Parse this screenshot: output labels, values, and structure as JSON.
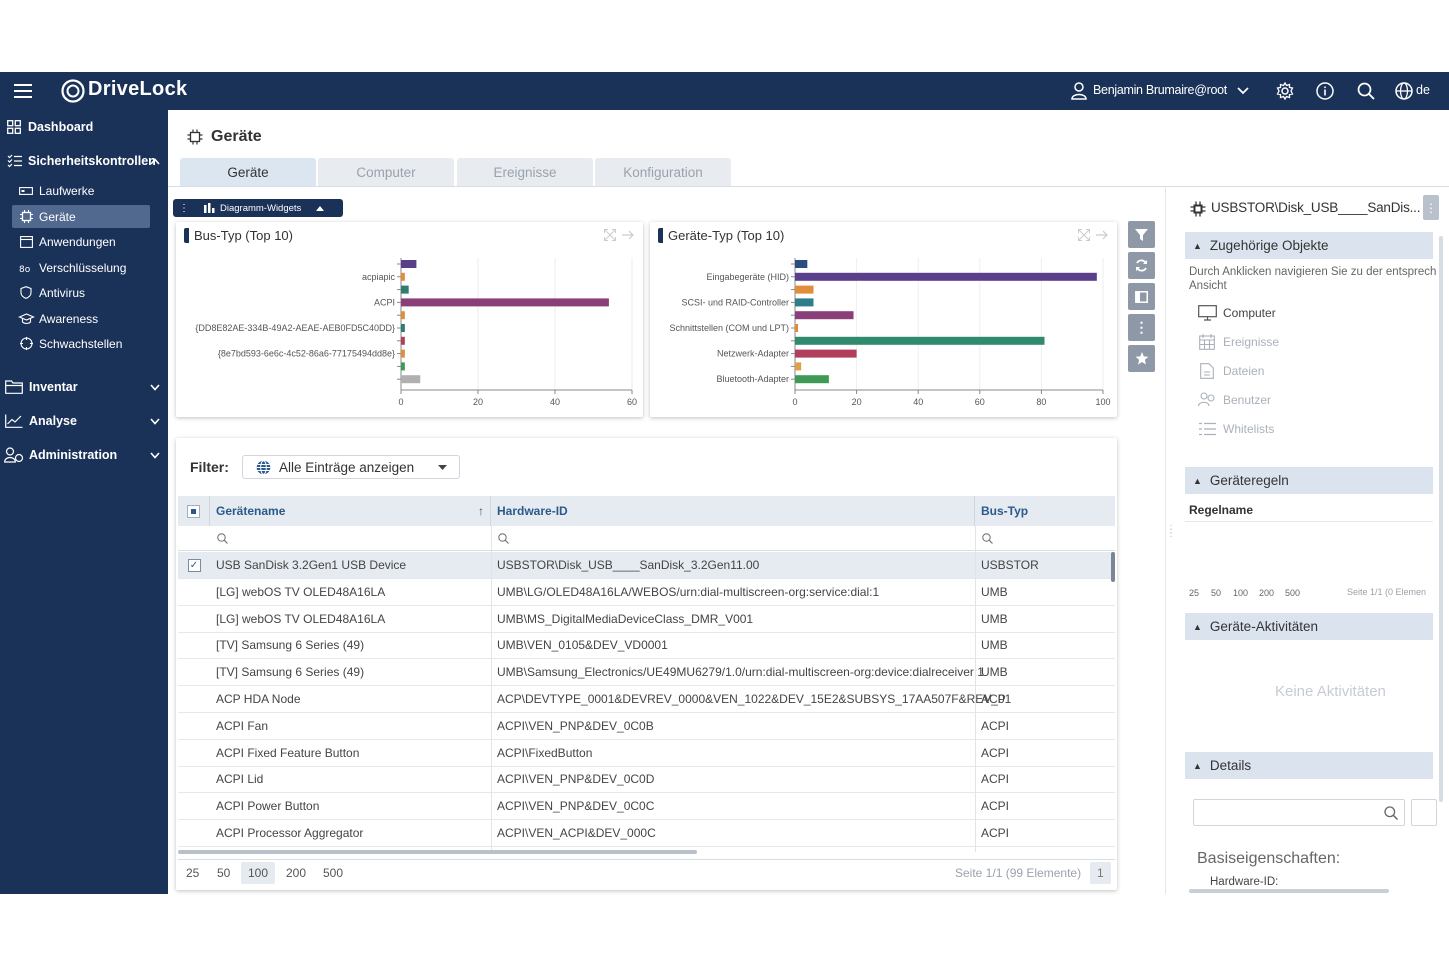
{
  "brand": {
    "name": "DriveLock"
  },
  "header": {
    "user": "Benjamin Brumaire@root",
    "lang": "de"
  },
  "sidebar": {
    "dashboard": "Dashboard",
    "security": "Sicherheitskontrollen",
    "items": [
      {
        "label": "Laufwerke",
        "icon": "drive-icon"
      },
      {
        "label": "Geräte",
        "icon": "chip-icon"
      },
      {
        "label": "Anwendungen",
        "icon": "window-icon"
      },
      {
        "label": "Verschlüsselung",
        "icon": "key-icon"
      },
      {
        "label": "Antivirus",
        "icon": "shield-icon"
      },
      {
        "label": "Awareness",
        "icon": "graduation-icon"
      },
      {
        "label": "Schwachstellen",
        "icon": "target-icon"
      }
    ],
    "inventory": "Inventar",
    "analysis": "Analyse",
    "administration": "Administration"
  },
  "page": {
    "title": "Geräte",
    "tabs": [
      "Geräte",
      "Computer",
      "Ereignisse",
      "Konfiguration"
    ],
    "widgets_label": "Diagramm-Widgets"
  },
  "chart_data": [
    {
      "type": "bar",
      "title": "Bus-Typ (Top 10)",
      "orientation": "horizontal",
      "categories": [
        "",
        "acpiapic",
        "",
        "ACPI",
        "",
        "{DD8E82AE-334B-49A2-AEAE-AEB0FD5C40DD}",
        "",
        "{8e7bd593-6e6c-4c52-86a6-77175494dd8e}",
        "",
        ""
      ],
      "values": [
        4,
        1,
        2,
        54,
        1,
        1,
        1,
        1,
        1,
        5
      ],
      "colors": [
        "#5a3f8a",
        "#e08e3c",
        "#2f7d70",
        "#8a3f79",
        "#e08e3c",
        "#2f7d70",
        "#b13f5b",
        "#e08e3c",
        "#3f9a55",
        "#b0b0b0"
      ],
      "xlim": [
        0,
        60
      ],
      "xticks": [
        0,
        20,
        40,
        60
      ]
    },
    {
      "type": "bar",
      "title": "Geräte-Typ (Top 10)",
      "orientation": "horizontal",
      "categories": [
        "",
        "Eingabegeräte (HID)",
        "",
        "SCSI- und RAID-Controller",
        "",
        "Schnittstellen (COM und LPT)",
        "",
        "Netzwerk-Adapter",
        "",
        "Bluetooth-Adapter"
      ],
      "values": [
        4,
        98,
        6,
        6,
        19,
        1,
        81,
        20,
        2,
        11
      ],
      "colors": [
        "#2b4e7e",
        "#5a3f8a",
        "#e08e3c",
        "#2f7d8a",
        "#8a3f79",
        "#e08e3c",
        "#2f8a6e",
        "#b13f5b",
        "#e0a04a",
        "#3f9a55"
      ],
      "xlim": [
        0,
        100
      ],
      "xticks": [
        0,
        20,
        40,
        60,
        80,
        100
      ]
    }
  ],
  "filter": {
    "label": "Filter:",
    "value": "Alle Einträge anzeigen"
  },
  "grid": {
    "columns": [
      "Gerätename",
      "Hardware-ID",
      "Bus-Typ"
    ],
    "rows": [
      [
        "USB SanDisk 3.2Gen1 USB Device",
        "USBSTOR\\Disk_USB____SanDisk_3.2Gen11.00",
        "USBSTOR"
      ],
      [
        "[LG] webOS TV OLED48A16LA",
        "UMB\\LG/OLED48A16LA/WEBOS/urn:dial-multiscreen-org:service:dial:1",
        "UMB"
      ],
      [
        "[LG] webOS TV OLED48A16LA",
        "UMB\\MS_DigitalMediaDeviceClass_DMR_V001",
        "UMB"
      ],
      [
        "[TV] Samsung 6 Series (49)",
        "UMB\\VEN_0105&DEV_VD0001",
        "UMB"
      ],
      [
        "[TV] Samsung 6 Series (49)",
        "UMB\\Samsung_Electronics/UE49MU6279/1.0/urn:dial-multiscreen-org:device:dialreceiver:1",
        "UMB"
      ],
      [
        "ACP HDA Node",
        "ACP\\DEVTYPE_0001&DEVREV_0000&VEN_1022&DEV_15E2&SUBSYS_17AA507F&REV_01",
        "ACP"
      ],
      [
        "ACPI Fan",
        "ACPI\\VEN_PNP&DEV_0C0B",
        "ACPI"
      ],
      [
        "ACPI Fixed Feature Button",
        "ACPI\\FixedButton",
        "ACPI"
      ],
      [
        "ACPI Lid",
        "ACPI\\VEN_PNP&DEV_0C0D",
        "ACPI"
      ],
      [
        "ACPI Power Button",
        "ACPI\\VEN_PNP&DEV_0C0C",
        "ACPI"
      ],
      [
        "ACPI Processor Aggregator",
        "ACPI\\VEN_ACPI&DEV_000C",
        "ACPI"
      ]
    ],
    "page_sizes": [
      "25",
      "50",
      "100",
      "200",
      "500"
    ],
    "page_info": "Seite 1/1 (99 Elemente)",
    "page_number": "1"
  },
  "right": {
    "title": "USBSTOR\\Disk_USB____SanDis...",
    "related": {
      "heading": "Zugehörige Objekte",
      "hint": "Durch Anklicken navigieren Sie zu der entsprech Ansicht",
      "items": [
        "Computer",
        "Ereignisse",
        "Dateien",
        "Benutzer",
        "Whitelists"
      ]
    },
    "rules": {
      "heading": "Geräteregeln",
      "column": "Regelname",
      "page_sizes": [
        "25",
        "50",
        "100",
        "200",
        "500"
      ],
      "page_info": "Seite 1/1 (0 Elemen"
    },
    "activities": {
      "heading": "Geräte-Aktivitäten",
      "empty": "Keine Aktivitäten"
    },
    "details": {
      "heading": "Details",
      "basic": "Basiseigenschaften:",
      "hw_label": "Hardware-ID:"
    }
  }
}
